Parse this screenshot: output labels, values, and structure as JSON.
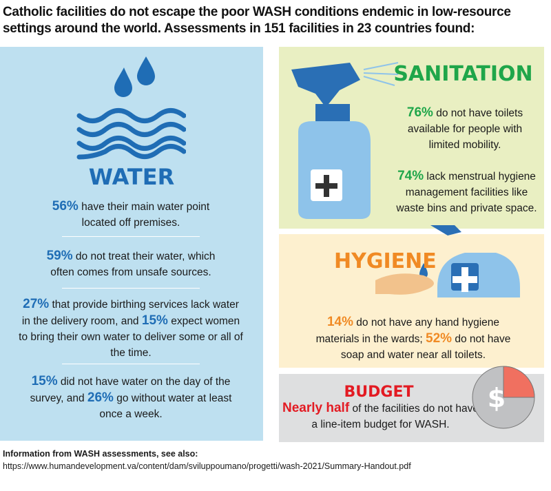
{
  "title": "Catholic facilities do not escape the poor WASH conditions endemic in low-resource settings around the world. Assessments in 151 facilities in 23 countries found:",
  "water": {
    "heading": "WATER",
    "stats": [
      {
        "pct": "56%",
        "text": " have their main water point located off premises."
      },
      {
        "pct": "59%",
        "text": " do not treat their water, which often comes from unsafe sources."
      },
      {
        "pct": "27%",
        "text": " that provide birthing services lack water in the delivery room, and ",
        "pct2": "15%",
        "text2": " expect women to bring their own water to deliver some or all of the time."
      },
      {
        "pct": "15%",
        "text": " did not have water on the day of the survey, and ",
        "pct2": "26%",
        "text2": " go without water at least once a week."
      }
    ]
  },
  "sanitation": {
    "heading": "SANITATION",
    "stats": [
      {
        "pct": "76%",
        "text": " do not have toilets available for people with limited mobility."
      },
      {
        "pct": "74%",
        "text": " lack menstrual hygiene management facilities like waste bins and private space."
      }
    ]
  },
  "hygiene": {
    "heading": "HYGIENE",
    "pct": "14%",
    "text": " do not have any hand hygiene materials in the wards; ",
    "pct2": "52%",
    "text2": " do not have soap and water near all toilets."
  },
  "budget": {
    "heading": "BUDGET",
    "highlight": "Nearly half",
    "text": " of the facilities do not have a line-item budget for WASH.",
    "pie_fraction_highlighted": 0.25,
    "symbol": "$"
  },
  "footer": {
    "line1": "Information from WASH assessments, see also:",
    "line2": "https://www.humandevelopment.va/content/dam/sviluppoumano/progetti/wash-2021/Summary-Handout.pdf"
  },
  "colors": {
    "water": "#1f6db5",
    "sanitation": "#1fa64a",
    "hygiene": "#f08a24",
    "budget": "#e31b23"
  }
}
